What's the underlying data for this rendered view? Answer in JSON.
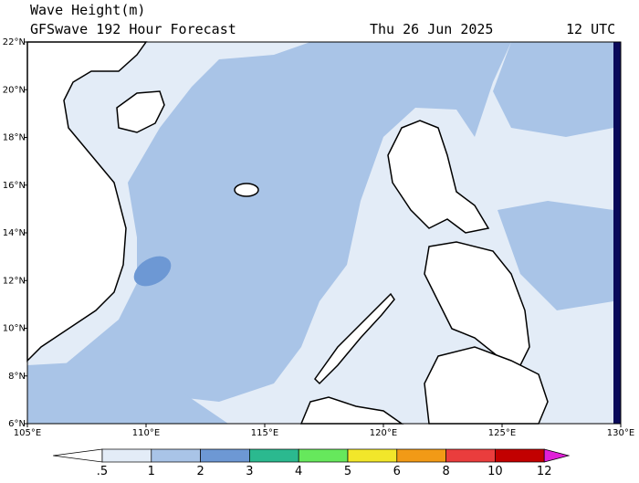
{
  "header": {
    "title": "Wave Height(m)",
    "subtitle": "GFSwave 192 Hour Forecast",
    "date": "Thu 26 Jun 2025",
    "time": "12 UTC"
  },
  "map": {
    "lonlim": [
      105,
      130
    ],
    "latlim": [
      6,
      22
    ],
    "lon_ticks": [
      {
        "value": 105,
        "label": "105°E"
      },
      {
        "value": 110,
        "label": "110°E"
      },
      {
        "value": 115,
        "label": "115°E"
      },
      {
        "value": 120,
        "label": "120°E"
      },
      {
        "value": 125,
        "label": "125°E"
      },
      {
        "value": 130,
        "label": "130°E"
      }
    ],
    "lat_ticks": [
      {
        "value": 6,
        "label": "6°N"
      },
      {
        "value": 8,
        "label": "8°N"
      },
      {
        "value": 10,
        "label": "10°N"
      },
      {
        "value": 12,
        "label": "12°N"
      },
      {
        "value": 14,
        "label": "14°N"
      },
      {
        "value": 16,
        "label": "16°N"
      },
      {
        "value": 18,
        "label": "18°N"
      },
      {
        "value": 20,
        "label": "20°N"
      },
      {
        "value": 22,
        "label": "22°N"
      }
    ]
  },
  "colorbar": {
    "levels": [
      {
        "value": 0.5,
        "label": ".5"
      },
      1,
      2,
      3,
      4,
      5,
      6,
      8,
      10,
      12
    ],
    "colors": [
      "#ffffff",
      "#e3ecf7",
      "#a9c4e7",
      "#6d98d4",
      "#2bb98f",
      "#66e85c",
      "#f2e62a",
      "#f29a16",
      "#ea3d3d",
      "#c20000",
      "#e020d8"
    ]
  }
}
